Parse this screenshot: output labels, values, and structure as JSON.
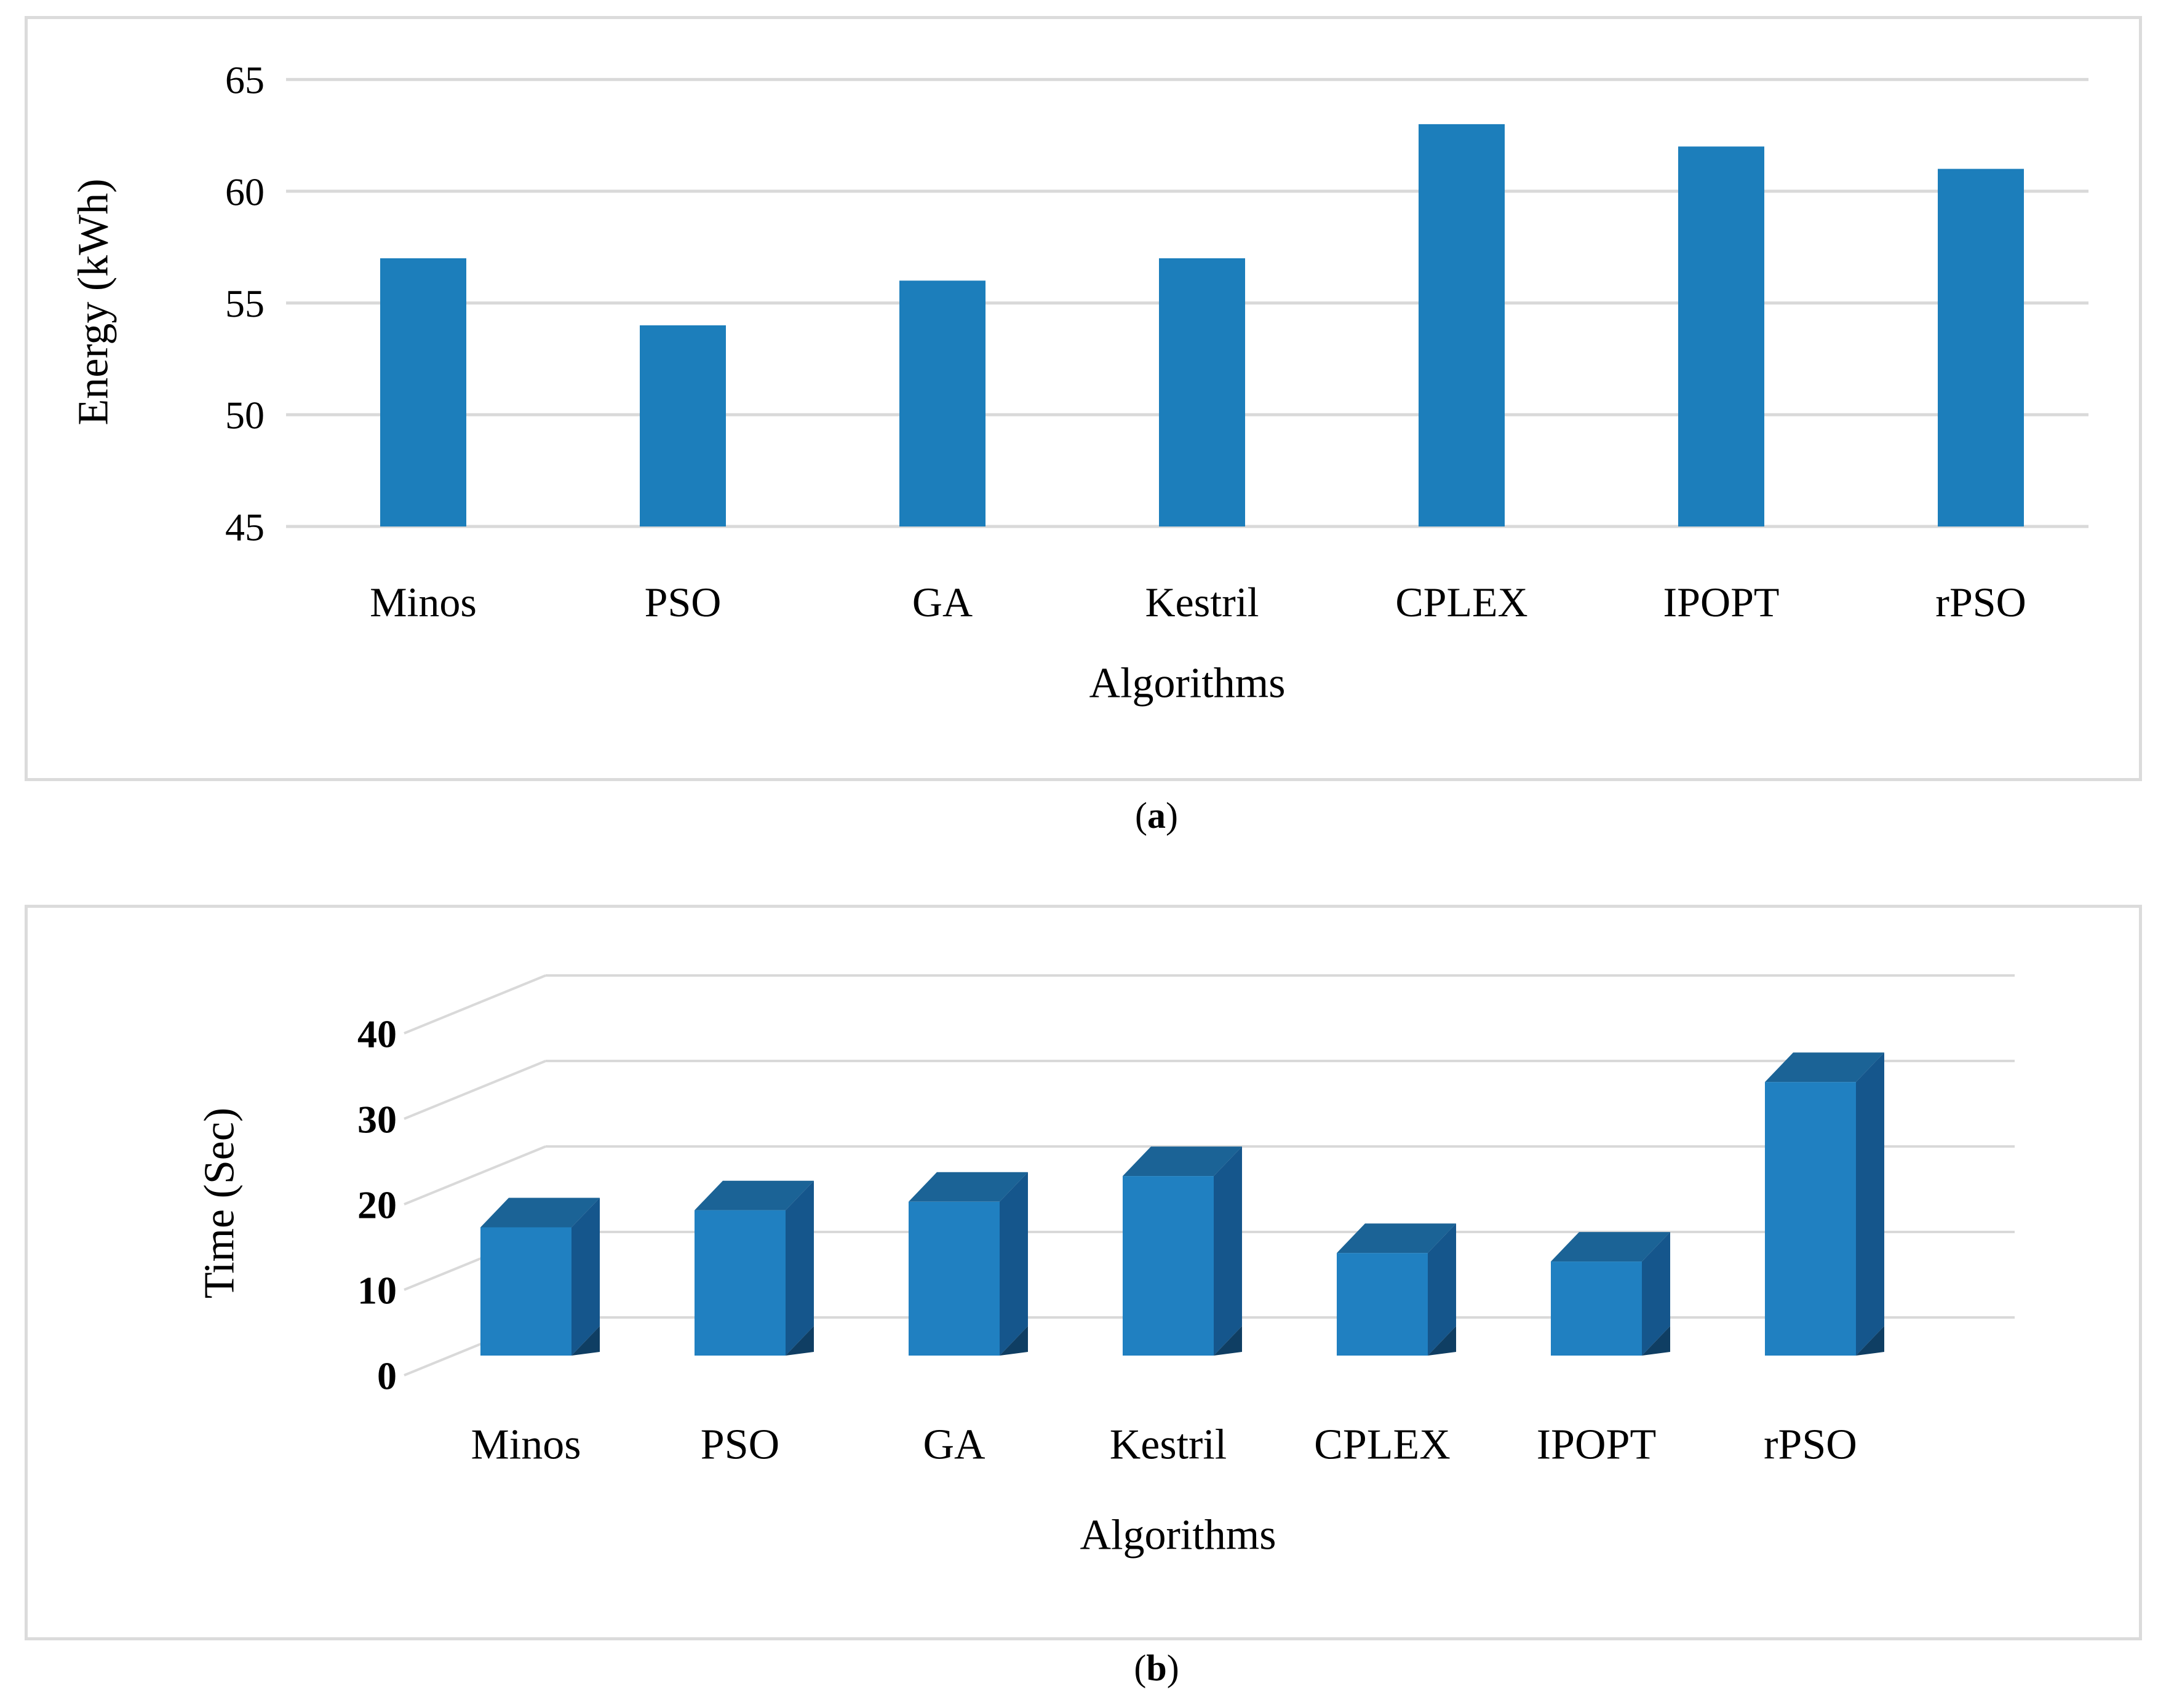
{
  "captions": {
    "a": {
      "open": "(",
      "letter": "a",
      "close": ")"
    },
    "b": {
      "open": "(",
      "letter": "b",
      "close": ")"
    }
  },
  "chart_data": [
    {
      "id": "energy",
      "type": "bar",
      "title": "",
      "xlabel": "Algorithms",
      "ylabel": "Energy (kWh)",
      "categories": [
        "Minos",
        "PSO",
        "GA",
        "Kestril",
        "CPLEX",
        "IPOPT",
        "rPSO"
      ],
      "values": [
        57,
        54,
        56,
        57,
        63,
        62,
        61
      ],
      "ylim": [
        45,
        65
      ],
      "yticks": [
        45,
        50,
        55,
        60,
        65
      ],
      "grid": true,
      "legend": "none",
      "bar_color": "#1C7EBB",
      "gridline_color": "#D9D9D9",
      "text_color": "#000000"
    },
    {
      "id": "time",
      "type": "bar-3d",
      "title": "",
      "xlabel": "Algorithms",
      "ylabel": "Time (Sec)",
      "categories": [
        "Minos",
        "PSO",
        "GA",
        "Kestril",
        "CPLEX",
        "IPOPT",
        "rPSO"
      ],
      "values": [
        15,
        17,
        18,
        21,
        12,
        11,
        32
      ],
      "ylim": [
        0,
        40
      ],
      "yticks": [
        0,
        10,
        20,
        30,
        40
      ],
      "grid": true,
      "legend": "none",
      "colors": {
        "front": "#2080C1",
        "top": "#1B6396",
        "side": "#15568C",
        "shadow": "#0F3E63"
      },
      "gridline_color": "#D9D9D9",
      "text_color": "#000000"
    }
  ]
}
